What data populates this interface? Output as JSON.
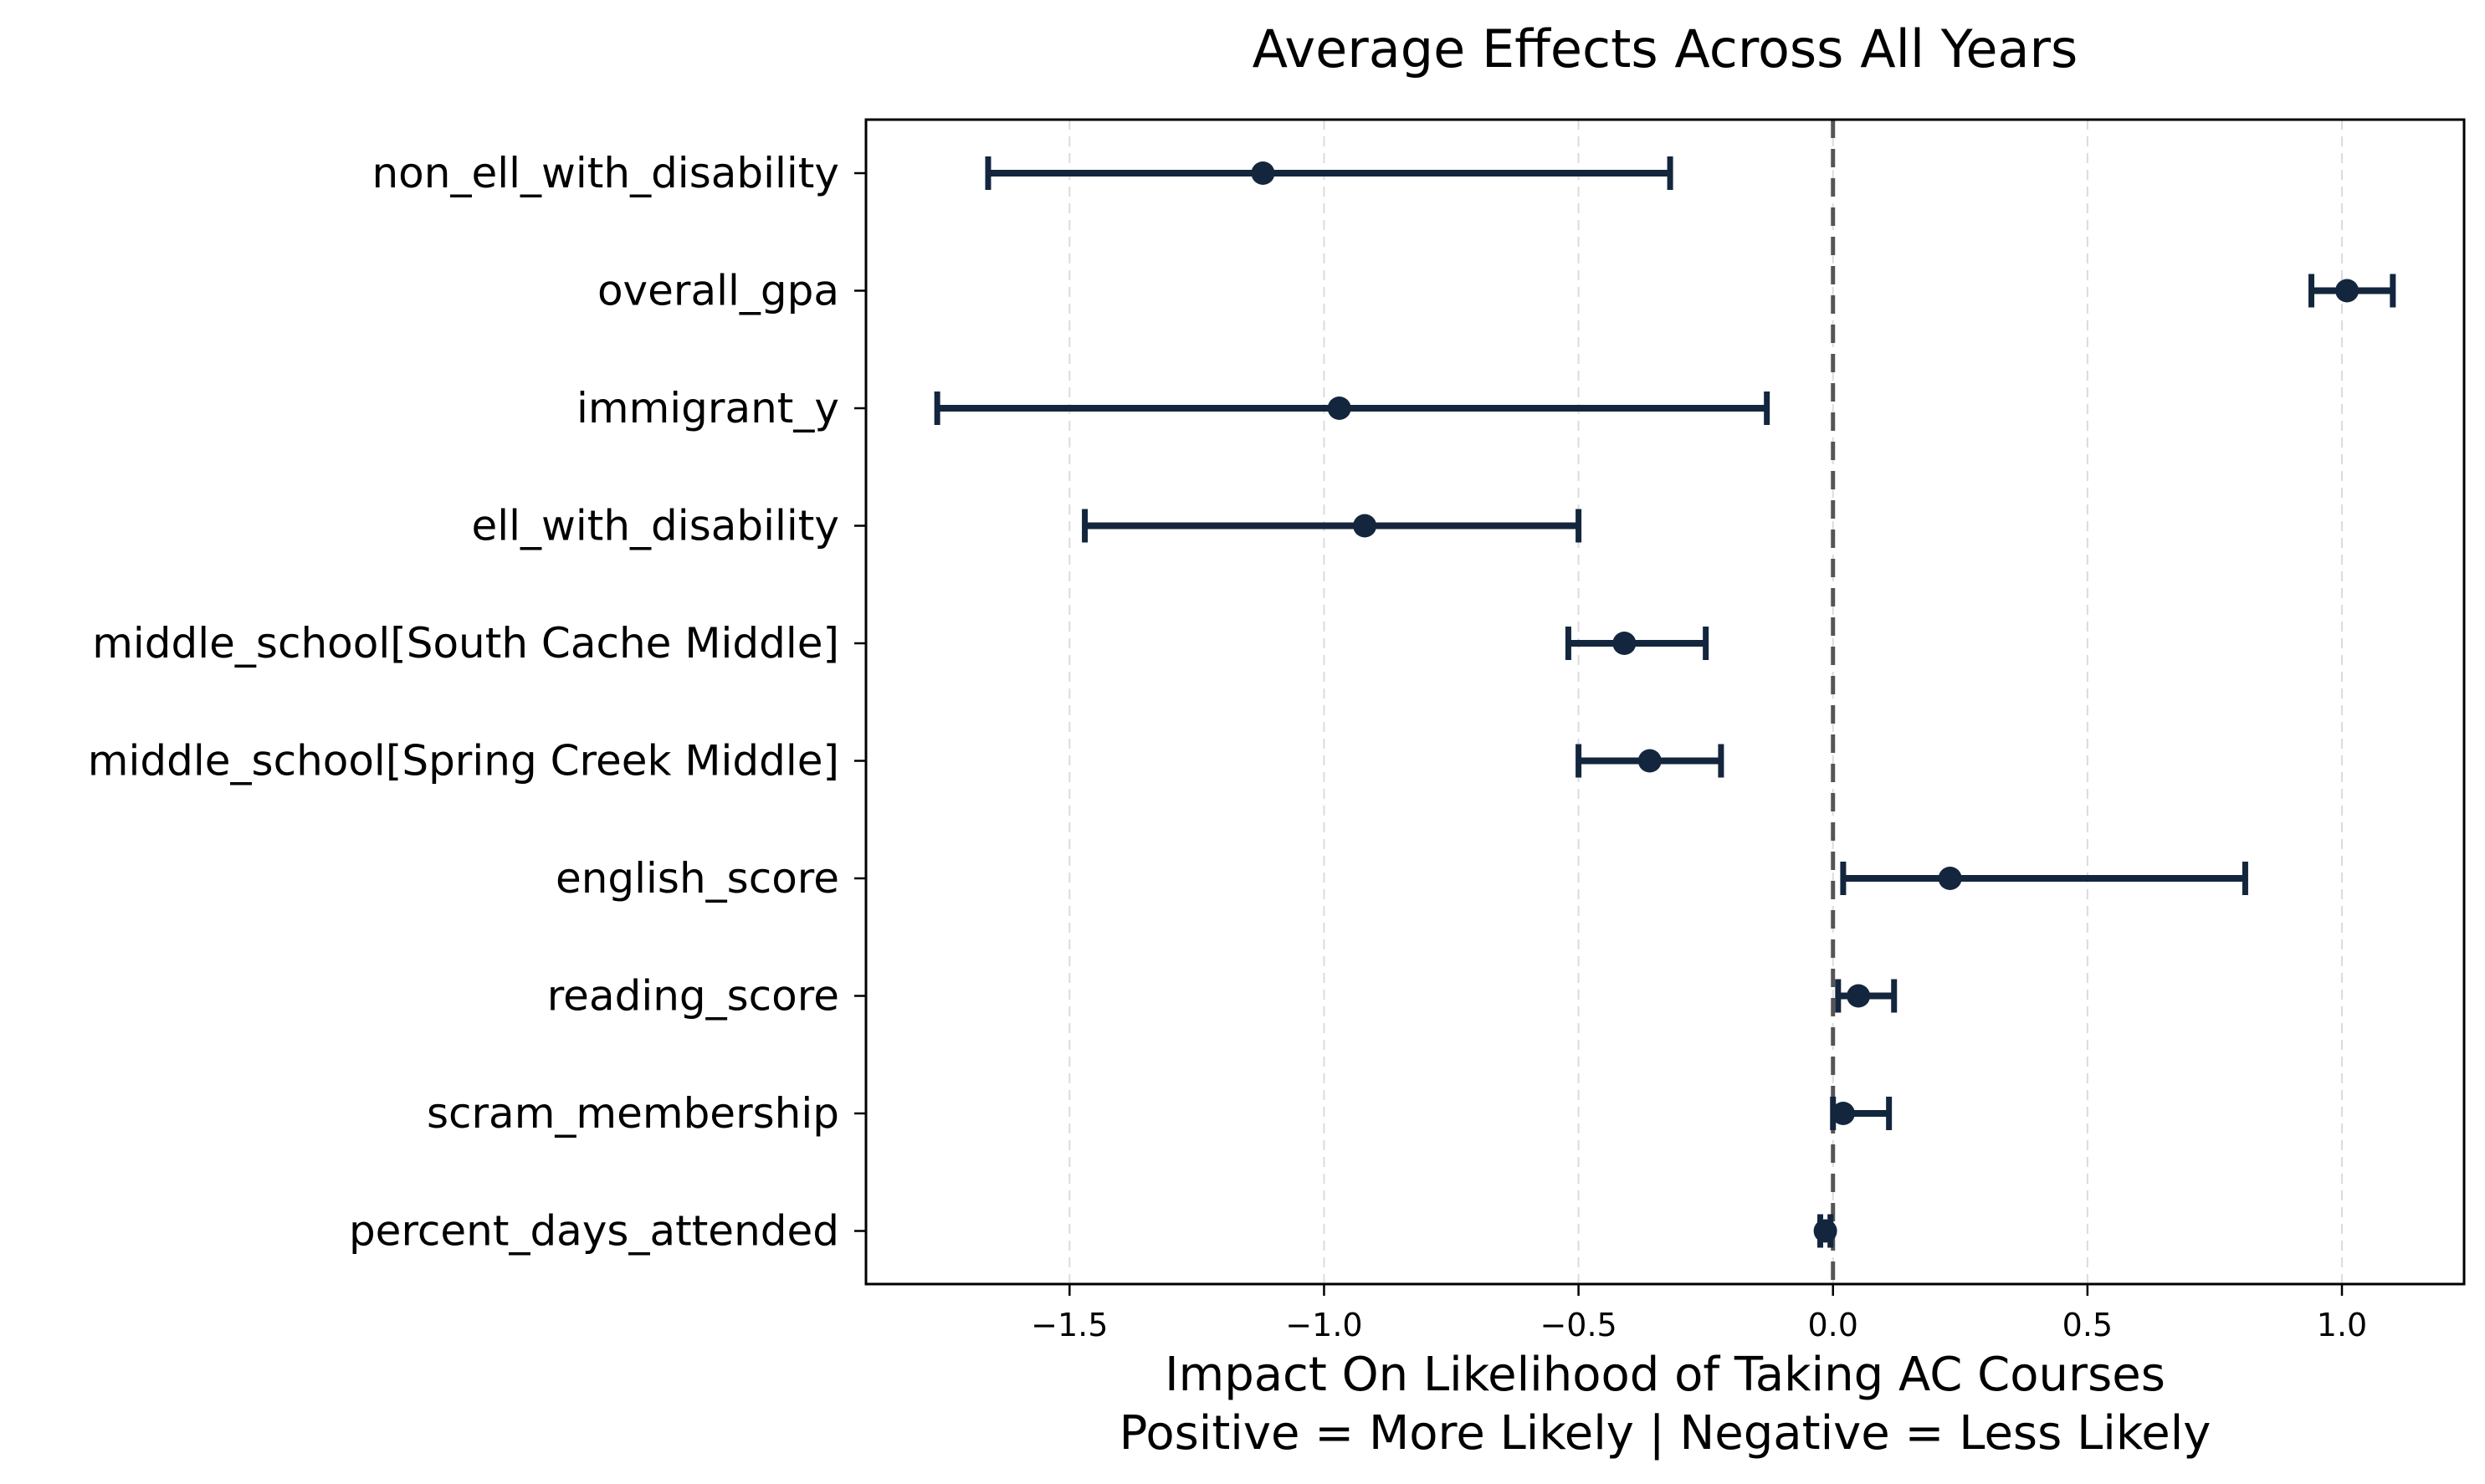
{
  "chart_data": {
    "type": "scatter",
    "title": "Average Effects Across All Years",
    "xlabel": "Impact On Likelihood of Taking AC Courses",
    "xlabel_line2": "Positive = More Likely | Negative = Less Likely",
    "ylabel": "",
    "xlim": [
      -1.9,
      1.24
    ],
    "xticks": [
      -1.5,
      -1.0,
      -0.5,
      0.0,
      0.5,
      1.0
    ],
    "xtick_labels": [
      "−1.5",
      "−1.0",
      "−0.5",
      "0.0",
      "0.5",
      "1.0"
    ],
    "reference_line": 0,
    "grid": "vertical dashed",
    "marker_color": "#13263d",
    "series": [
      {
        "points": [
          {
            "label": "non_ell_with_disability",
            "estimate": -1.12,
            "ci_low": -1.66,
            "ci_high": -0.32
          },
          {
            "label": "overall_gpa",
            "estimate": 1.01,
            "ci_low": 0.94,
            "ci_high": 1.1
          },
          {
            "label": "immigrant_y",
            "estimate": -0.97,
            "ci_low": -1.76,
            "ci_high": -0.13
          },
          {
            "label": "ell_with_disability",
            "estimate": -0.92,
            "ci_low": -1.47,
            "ci_high": -0.5
          },
          {
            "label": "middle_school[South Cache Middle]",
            "estimate": -0.41,
            "ci_low": -0.52,
            "ci_high": -0.25
          },
          {
            "label": "middle_school[Spring Creek Middle]",
            "estimate": -0.36,
            "ci_low": -0.5,
            "ci_high": -0.22
          },
          {
            "label": "english_score",
            "estimate": 0.23,
            "ci_low": 0.02,
            "ci_high": 0.81
          },
          {
            "label": "reading_score",
            "estimate": 0.05,
            "ci_low": 0.01,
            "ci_high": 0.12
          },
          {
            "label": "scram_membership",
            "estimate": 0.02,
            "ci_low": 0.0,
            "ci_high": 0.11
          },
          {
            "label": "percent_days_attended",
            "estimate": -0.015,
            "ci_low": -0.025,
            "ci_high": -0.005
          }
        ]
      }
    ]
  }
}
